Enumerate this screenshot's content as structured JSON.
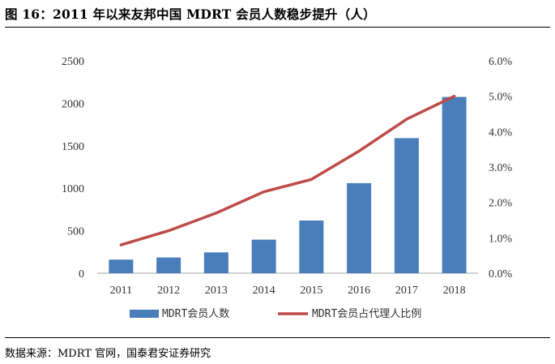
{
  "figure": {
    "title": "图 16：2011 年以来友邦中国 MDRT 会员人数稳步提升（人）",
    "source": "数据来源：MDRT 官网，国泰君安证券研究"
  },
  "chart_data": {
    "type": "bar+line",
    "title": "图 16：2011 年以来友邦中国 MDRT 会员人数稳步提升（人）",
    "categories": [
      "2011",
      "2012",
      "2013",
      "2014",
      "2015",
      "2016",
      "2017",
      "2018"
    ],
    "series": [
      {
        "name": "MDRT会员人数",
        "type": "bar",
        "axis": "left",
        "color": "#4a7ebb",
        "values": [
          160,
          185,
          245,
          395,
          620,
          1060,
          1590,
          2075
        ]
      },
      {
        "name": "MDRT会员占代理人比例",
        "type": "line",
        "axis": "right",
        "color": "#be4b48",
        "values": [
          0.8,
          1.2,
          1.7,
          2.3,
          2.65,
          3.45,
          4.35,
          5.0
        ]
      }
    ],
    "y_left": {
      "min": 0,
      "max": 2500,
      "ticks": [
        "0",
        "500",
        "1000",
        "1500",
        "2000",
        "2500"
      ]
    },
    "y_right": {
      "min": 0,
      "max": 6,
      "ticks": [
        "0.0%",
        "1.0%",
        "2.0%",
        "3.0%",
        "4.0%",
        "5.0%",
        "6.0%"
      ]
    },
    "grid": false,
    "legend": "bottom"
  }
}
